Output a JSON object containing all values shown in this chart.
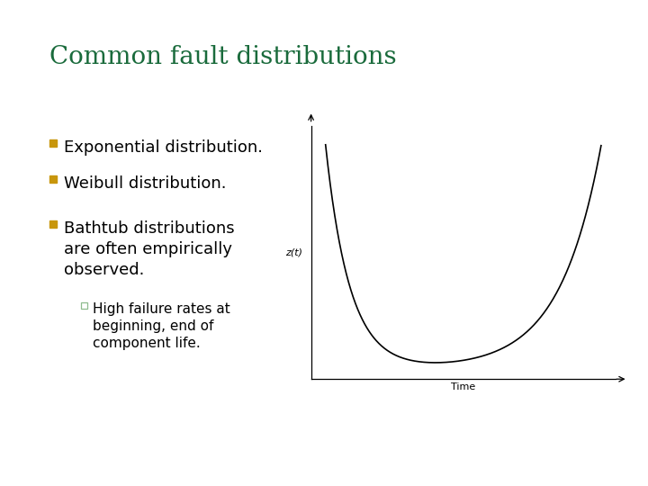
{
  "title": "Common fault distributions",
  "title_color": "#1a6b3c",
  "title_fontsize": 20,
  "background_color": "#ffffff",
  "border_color": "#b8960c",
  "bullet_color": "#c8960c",
  "bullet_items": [
    "Exponential distribution.",
    "Weibull distribution.",
    "Bathtub distributions\nare often empirically\nobserved."
  ],
  "sub_bullet_item": "High failure rates at\nbeginning, end of\ncomponent life.",
  "sub_bullet_border_color": "#8fbc8f",
  "text_color": "#000000",
  "text_fontsize": 13,
  "sub_text_fontsize": 11,
  "graph_ylabel": "z(t)",
  "graph_xlabel": "Time",
  "graph_label_fontsize": 8
}
